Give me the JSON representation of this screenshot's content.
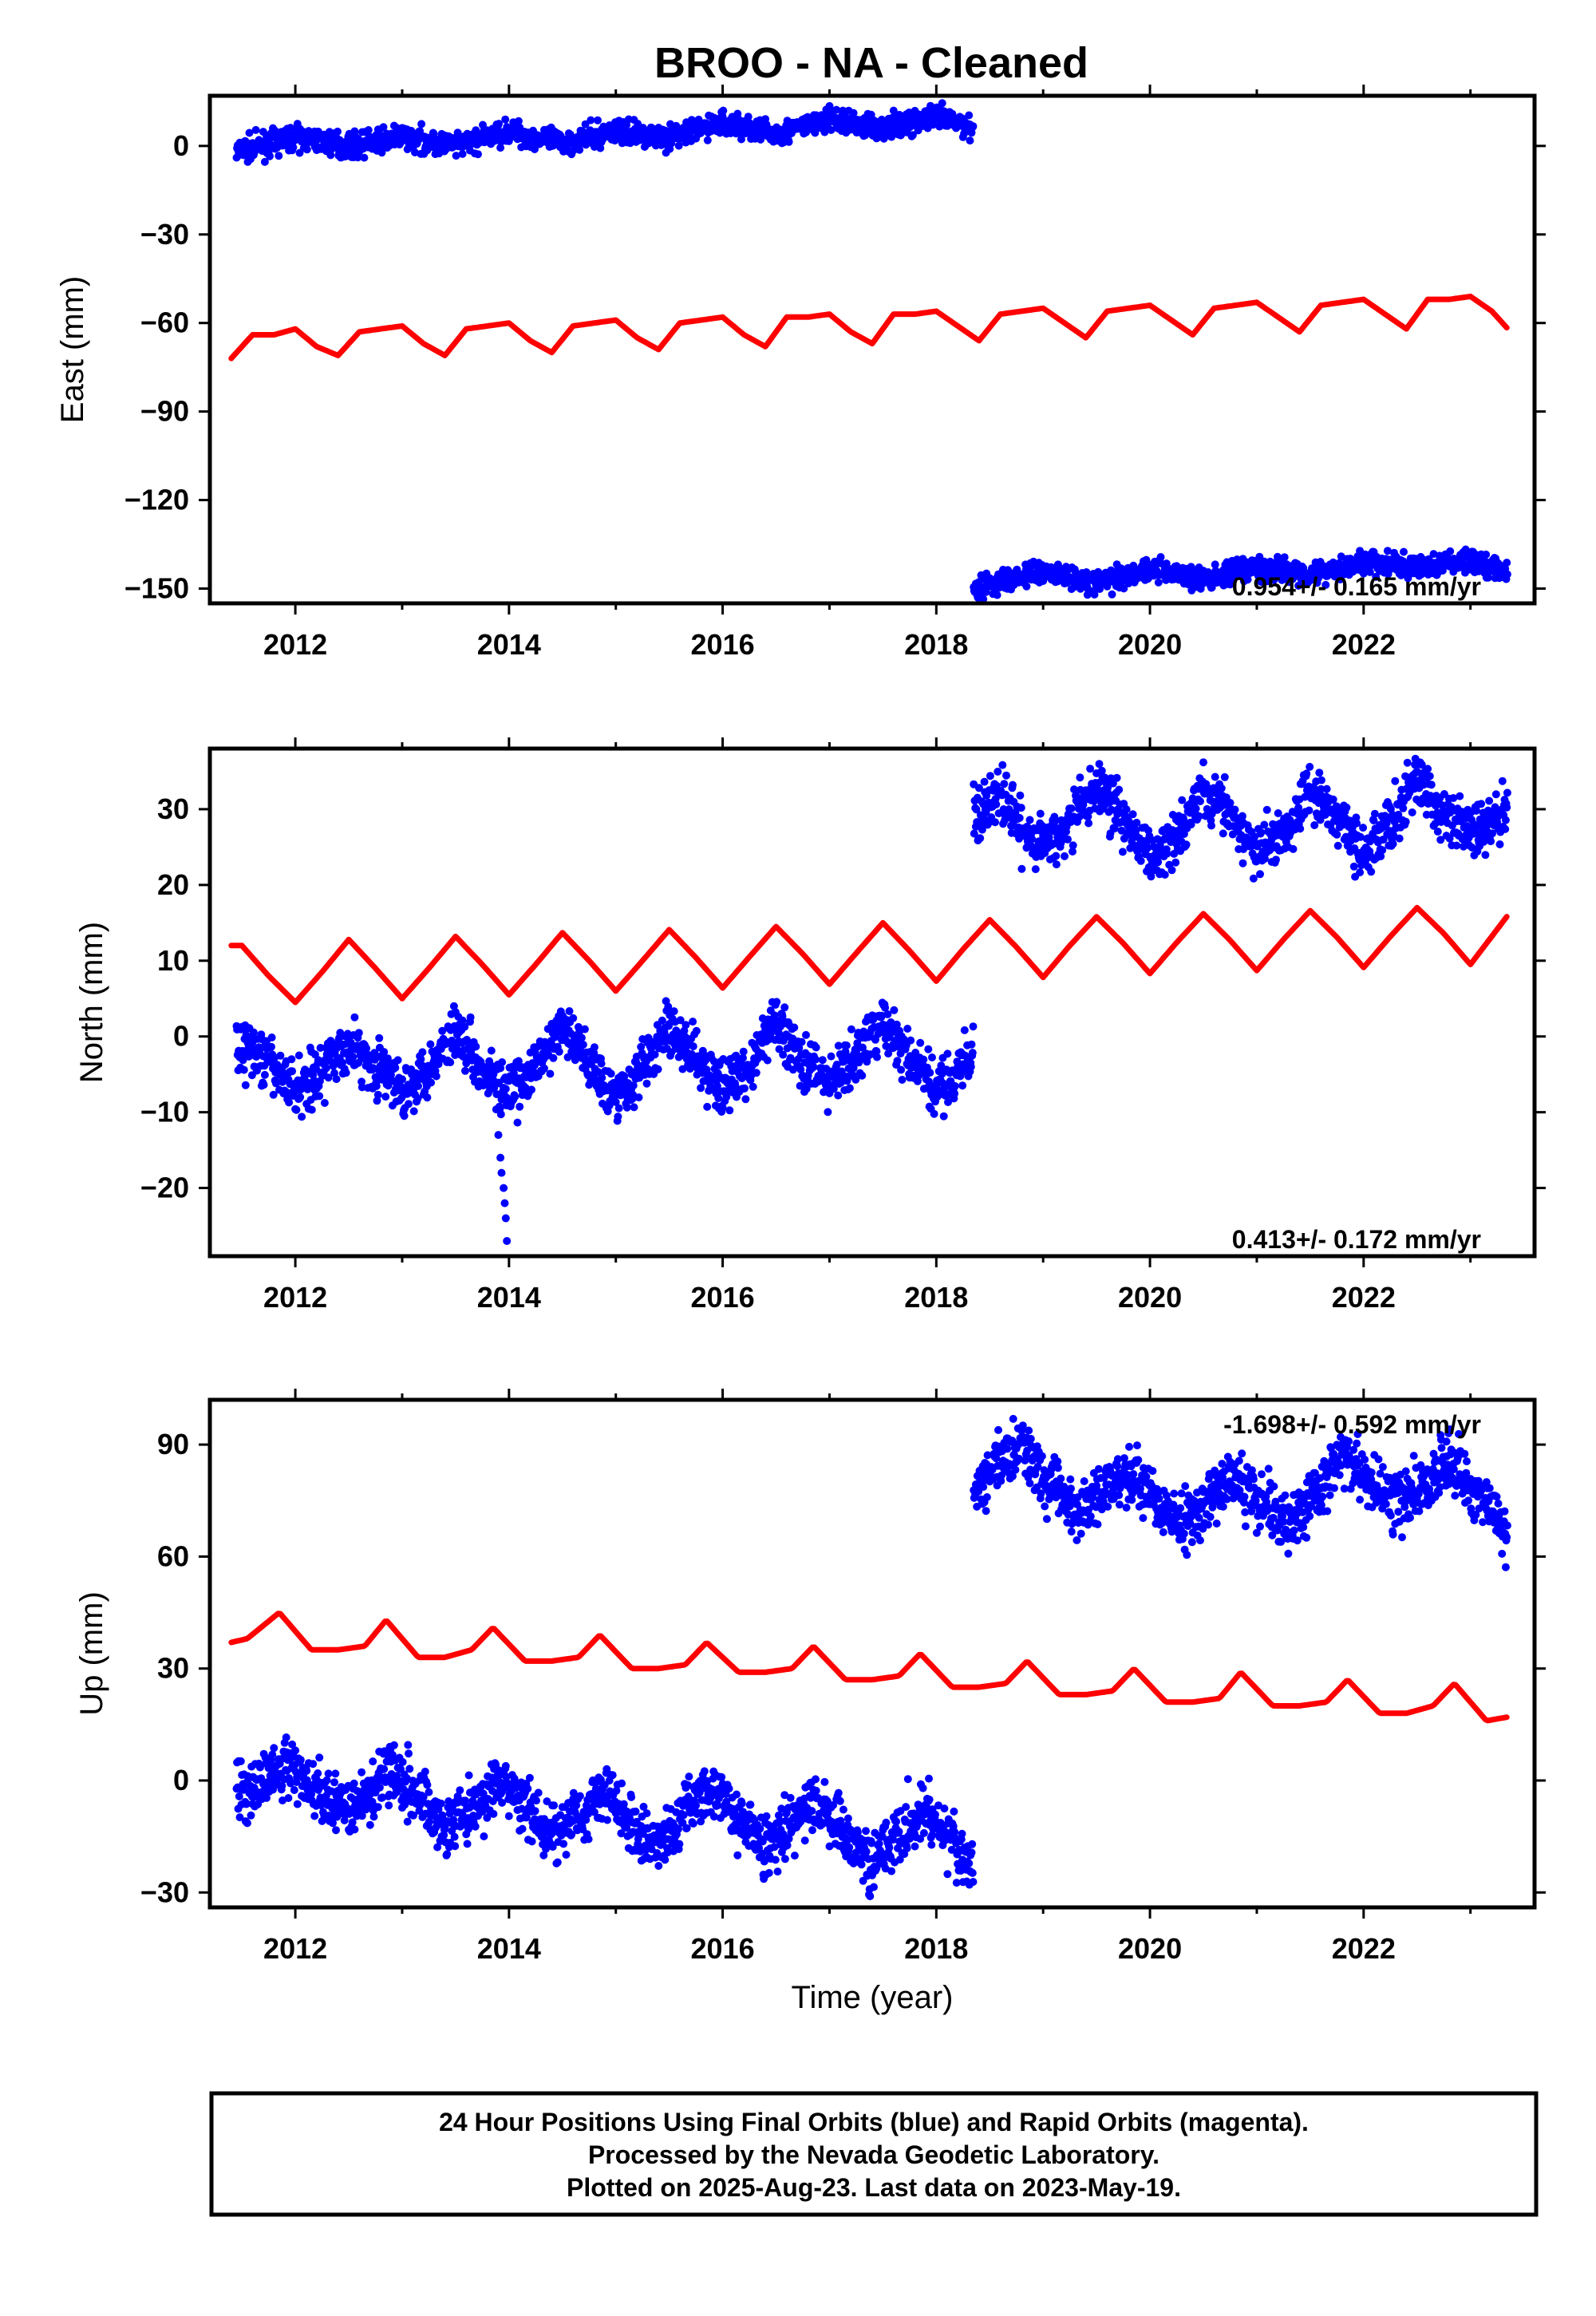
{
  "chart_data": {
    "type": "scatter",
    "title": "BROO  - NA - Cleaned",
    "xlabel": "Time (year)",
    "xlim": [
      2011.2,
      2023.6
    ],
    "xticks": [
      "2012",
      "2014",
      "2016",
      "2018",
      "2020",
      "2022"
    ],
    "panels": [
      {
        "ylabel": "East (mm)",
        "ylim": [
          -155,
          17
        ],
        "yticks": [
          "0",
          "−30",
          "−60",
          "−90",
          "−120",
          "−150"
        ],
        "rate": "0.954+/- 0.165 mm/yr",
        "rate_placement": "bottom-right",
        "final_orbits": [
          {
            "t": [
              2011.45,
              2012.0,
              2012.5,
              2013.0,
              2013.5,
              2014.0,
              2014.5,
              2015.0,
              2015.5,
              2016.0,
              2016.5,
              2017.0,
              2017.5,
              2018.0,
              2018.35
            ],
            "y": [
              -2,
              3,
              0,
              3,
              0,
              5,
              1,
              5,
              3,
              8,
              4,
              9,
              6,
              10,
              6
            ],
            "noise": 2.0
          },
          {
            "t": [
              2018.35,
              2019.0,
              2019.5,
              2020.0,
              2020.5,
              2021.0,
              2021.5,
              2022.0,
              2022.5,
              2023.0,
              2023.35
            ],
            "y": [
              -150,
              -144,
              -148,
              -143,
              -147,
              -143,
              -145,
              -141,
              -143,
              -140,
              -145
            ],
            "noise": 2.0
          }
        ],
        "model": [
          {
            "t": [
              2011.4,
              2011.6,
              2011.8,
              2012.0,
              2012.2,
              2012.4,
              2012.6,
              2012.8,
              2013.0,
              2013.2,
              2013.4,
              2013.6,
              2013.8,
              2014.0,
              2014.2,
              2014.4,
              2014.6,
              2014.8,
              2015.0,
              2015.2,
              2015.4,
              2015.6,
              2015.8,
              2016.0,
              2016.2,
              2016.4,
              2016.6,
              2016.8,
              2017.0,
              2017.2,
              2017.4,
              2017.6,
              2017.8,
              2018.0,
              2018.2,
              2018.4,
              2018.6,
              2018.8,
              2019.0,
              2019.2,
              2019.4,
              2019.6,
              2019.8,
              2020.0,
              2020.2,
              2020.4,
              2020.6,
              2020.8,
              2021.0,
              2021.2,
              2021.4,
              2021.6,
              2021.8,
              2022.0,
              2022.2,
              2022.4,
              2022.6,
              2022.8,
              2023.0,
              2023.2,
              2023.35
            ],
            "y": [
              -72,
              -64,
              -64,
              -62,
              -68,
              -71,
              -63,
              -62,
              -61,
              -67,
              -71,
              -62,
              -61,
              -60,
              -66,
              -70,
              -61,
              -60,
              -59,
              -65,
              -69,
              -60,
              -59,
              -58,
              -64,
              -68,
              -58,
              -58,
              -57,
              -63,
              -67,
              -57,
              -57,
              -56,
              -61,
              -66,
              -57,
              -56,
              -55,
              -60,
              -65,
              -56,
              -55,
              -54,
              -59,
              -64,
              -55,
              -54,
              -53,
              -58,
              -63,
              -54,
              -53,
              -52,
              -57,
              -62,
              -52,
              -52,
              -51,
              -56,
              -62
            ]
          }
        ]
      },
      {
        "ylabel": "North (mm)",
        "ylim": [
          -29,
          38
        ],
        "yticks": [
          "30",
          "20",
          "10",
          "0",
          "−10",
          "−20"
        ],
        "rate": "0.413+/- 0.172 mm/yr",
        "rate_placement": "bottom-right",
        "final_orbits": [
          {
            "t": [
              2011.45,
              2011.7,
              2012.0,
              2012.2,
              2012.5,
              2012.75,
              2013.0,
              2013.25,
              2013.5,
              2013.75,
              2014.0,
              2014.25,
              2014.5,
              2014.75,
              2015.0,
              2015.25,
              2015.5,
              2015.75,
              2016.0,
              2016.25,
              2016.5,
              2016.75,
              2017.0,
              2017.25,
              2017.5,
              2017.75,
              2018.0,
              2018.35
            ],
            "y": [
              -1,
              -3,
              -7,
              -5,
              -1,
              -4,
              -7,
              -4,
              1,
              -4,
              -8,
              -4,
              1,
              -3,
              -8,
              -4,
              1,
              -3,
              -7,
              -4,
              2,
              -3,
              -6,
              -3,
              2,
              -3,
              -7,
              -3
            ],
            "noise": 1.8
          },
          {
            "t": [
              2018.35,
              2018.6,
              2018.9,
              2019.2,
              2019.5,
              2019.75,
              2020.0,
              2020.25,
              2020.5,
              2020.75,
              2021.0,
              2021.25,
              2021.5,
              2021.75,
              2022.0,
              2022.25,
              2022.5,
              2022.75,
              2023.0,
              2023.35
            ],
            "y": [
              29,
              32,
              25,
              27,
              33,
              29,
              23,
              27,
              33,
              29,
              24,
              27,
              33,
              29,
              24,
              28,
              34,
              29,
              27,
              30
            ],
            "noise": 1.8
          },
          {
            "t": [
              2013.9,
              2013.92,
              2013.93,
              2013.95,
              2013.96,
              2013.97,
              2013.98
            ],
            "y": [
              -13,
              -16,
              -18,
              -20,
              -22,
              -24,
              -27
            ],
            "noise": 0
          }
        ],
        "model": [
          {
            "t": [
              2011.4,
              2011.5,
              2011.75,
              2012.0,
              2012.25,
              2012.5,
              2012.75,
              2013.0,
              2013.25,
              2013.5,
              2013.75,
              2014.0,
              2014.25,
              2014.5,
              2014.75,
              2015.0,
              2015.25,
              2015.5,
              2015.75,
              2016.0,
              2016.25,
              2016.5,
              2016.75,
              2017.0,
              2017.25,
              2017.5,
              2017.75,
              2018.0,
              2018.25,
              2018.5,
              2018.75,
              2019.0,
              2019.25,
              2019.5,
              2019.75,
              2020.0,
              2020.25,
              2020.5,
              2020.75,
              2021.0,
              2021.25,
              2021.5,
              2021.75,
              2022.0,
              2022.25,
              2022.5,
              2022.75,
              2023.0,
              2023.35
            ],
            "y": [
              12,
              12,
              8,
              4.5,
              8.5,
              12.8,
              9,
              5,
              9,
              13.2,
              9.5,
              5.5,
              9.5,
              13.7,
              10,
              6,
              10,
              14.1,
              10.4,
              6.4,
              10.5,
              14.5,
              10.9,
              6.9,
              11,
              15,
              11.3,
              7.3,
              11.5,
              15.4,
              11.8,
              7.8,
              12,
              15.8,
              12.3,
              8.3,
              12.4,
              16.2,
              12.7,
              8.7,
              12.8,
              16.6,
              13.1,
              9.1,
              13.2,
              17,
              13.6,
              9.5,
              16
            ]
          }
        ]
      },
      {
        "ylabel": "Up (mm)",
        "ylim": [
          -34,
          102
        ],
        "yticks": [
          "90",
          "60",
          "30",
          "0",
          "−30"
        ],
        "rate": "-1.698+/- 0.592 mm/yr",
        "rate_placement": "top-right",
        "final_orbits": [
          {
            "t": [
              2011.45,
              2011.7,
              2011.9,
              2012.1,
              2012.4,
              2012.65,
              2012.9,
              2013.15,
              2013.4,
              2013.65,
              2013.9,
              2014.15,
              2014.4,
              2014.65,
              2014.9,
              2015.15,
              2015.4,
              2015.65,
              2015.9,
              2016.15,
              2016.4,
              2016.65,
              2016.9,
              2017.15,
              2017.4,
              2017.65,
              2017.9,
              2018.15,
              2018.35
            ],
            "y": [
              -5,
              0,
              4,
              0,
              -8,
              -4,
              4,
              -4,
              -12,
              -8,
              0,
              -8,
              -14,
              -10,
              -2,
              -12,
              -18,
              -8,
              -2,
              -10,
              -18,
              -12,
              -6,
              -14,
              -22,
              -14,
              -8,
              -16,
              -25
            ],
            "noise": 4.0
          },
          {
            "t": [
              2018.35,
              2018.55,
              2018.8,
              2019.05,
              2019.3,
              2019.55,
              2019.8,
              2020.05,
              2020.3,
              2020.55,
              2020.8,
              2021.05,
              2021.3,
              2021.55,
              2021.8,
              2022.05,
              2022.3,
              2022.55,
              2022.8,
              2023.05,
              2023.35
            ],
            "y": [
              76,
              84,
              90,
              80,
              72,
              78,
              83,
              75,
              68,
              76,
              81,
              76,
              68,
              76,
              88,
              80,
              74,
              78,
              86,
              78,
              66
            ],
            "noise": 4.0
          }
        ],
        "model": [
          {
            "t": [
              2011.4,
              2011.55,
              2011.85,
              2012.15,
              2012.4,
              2012.65,
              2012.85,
              2013.15,
              2013.4,
              2013.65,
              2013.85,
              2014.15,
              2014.4,
              2014.65,
              2014.85,
              2015.15,
              2015.4,
              2015.65,
              2015.85,
              2016.15,
              2016.4,
              2016.65,
              2016.85,
              2017.15,
              2017.4,
              2017.65,
              2017.85,
              2018.15,
              2018.4,
              2018.65,
              2018.85,
              2019.15,
              2019.4,
              2019.65,
              2019.85,
              2020.15,
              2020.4,
              2020.65,
              2020.85,
              2021.15,
              2021.4,
              2021.65,
              2021.85,
              2022.15,
              2022.4,
              2022.65,
              2022.85,
              2023.15,
              2023.35
            ],
            "y": [
              37,
              38,
              45,
              35,
              35,
              36,
              43,
              33,
              33,
              35,
              41,
              32,
              32,
              33,
              39,
              30,
              30,
              31,
              37,
              29,
              29,
              30,
              36,
              27,
              27,
              28,
              34,
              25,
              25,
              26,
              32,
              23,
              23,
              24,
              30,
              21,
              21,
              22,
              29,
              20,
              20,
              21,
              27,
              18,
              18,
              20,
              26,
              16,
              17
            ]
          }
        ]
      }
    ],
    "footer": [
      "24 Hour Positions Using Final Orbits (blue) and Rapid Orbits (magenta).",
      "Processed by the Nevada Geodetic Laboratory.",
      "Plotted on 2025-Aug-23. Last data on 2023-May-19."
    ],
    "colors": {
      "final_orbits": "#0000ff",
      "model": "#ff0000",
      "frame": "#000000"
    }
  }
}
